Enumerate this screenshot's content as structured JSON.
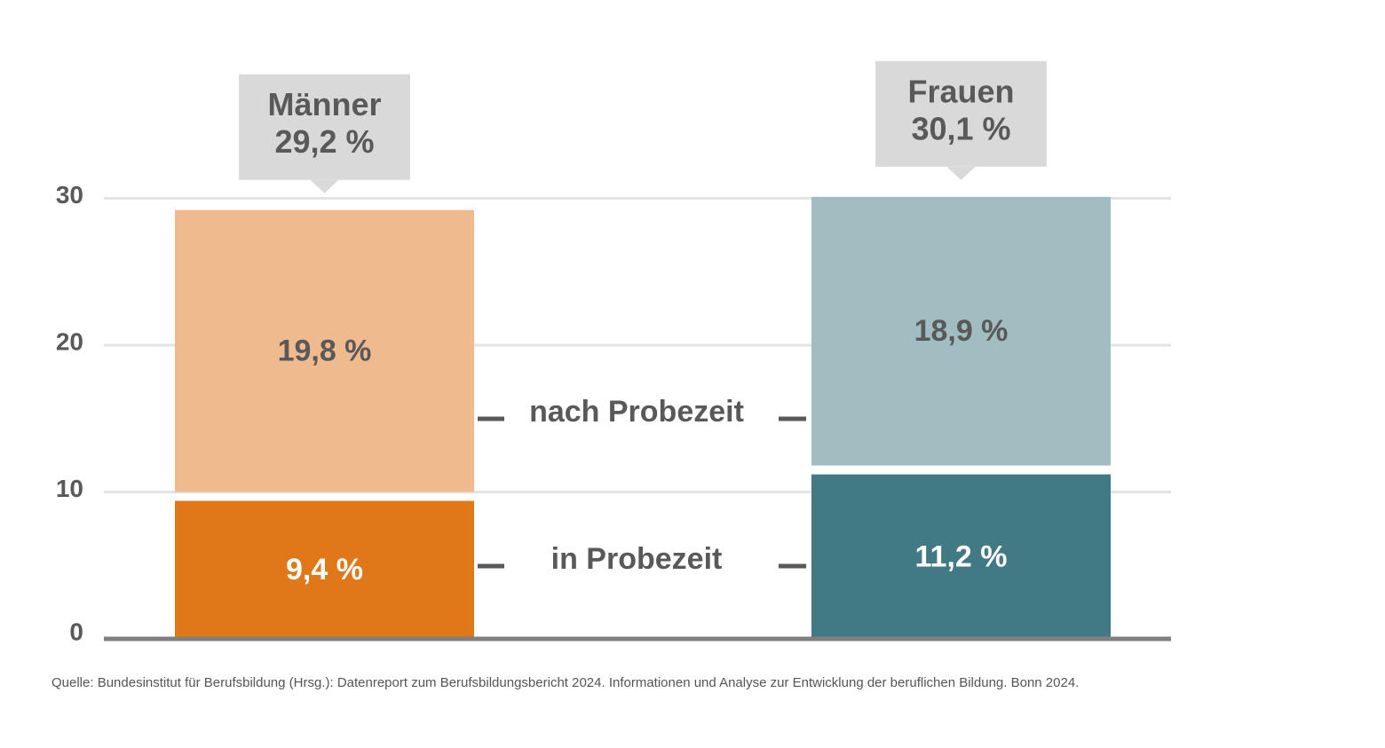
{
  "chart_data": {
    "type": "bar",
    "stacked": true,
    "categories": [
      "Männer",
      "Frauen"
    ],
    "totals": [
      "29,2 %",
      "30,1 %"
    ],
    "series": [
      {
        "name": "in Probezeit",
        "values": [
          9.4,
          11.2
        ],
        "labels": [
          "9,4 %",
          "11,2 %"
        ],
        "colors": [
          "#E07819",
          "#417A84"
        ]
      },
      {
        "name": "nach Probezeit",
        "values": [
          19.8,
          18.9
        ],
        "labels": [
          "19,8 %",
          "18,9 %"
        ],
        "colors": [
          "#EFBA8D",
          "#A1BDC2"
        ]
      }
    ],
    "yticks": [
      "0",
      "10",
      "20",
      "30"
    ],
    "ylim": [
      0,
      30
    ],
    "grid": true,
    "legend": "center-between-bars"
  },
  "colors": {
    "callout": "#D9D9D9",
    "text": "#595959",
    "grid": "#E3E3E3",
    "axis": "#808080"
  },
  "source": "Quelle: Bundesinstitut für Berufsbildung (Hrsg.): Datenreport zum Berufsbildungsbericht 2024. Informationen und Analyse zur Entwicklung der beruflichen Bildung. Bonn 2024."
}
